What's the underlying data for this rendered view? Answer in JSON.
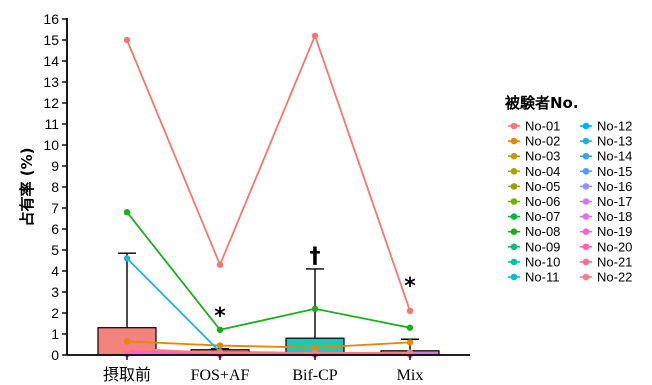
{
  "chart_data": {
    "type": "bar",
    "title": "",
    "xlabel": "",
    "ylabel": "占有率 (%)",
    "ylim": [
      0,
      16
    ],
    "yticks": [
      0,
      1,
      2,
      3,
      4,
      5,
      6,
      7,
      8,
      9,
      10,
      11,
      12,
      13,
      14,
      15,
      16
    ],
    "categories": [
      "摂取前",
      "FOS+AF",
      "Bif-CP",
      "Mix"
    ],
    "bar_series": {
      "values": [
        1.3,
        0.25,
        0.8,
        0.2
      ],
      "error_upper": [
        4.85,
        0.3,
        4.1,
        0.75
      ],
      "colors": [
        "#f4837d",
        "#f08080",
        "#20c8b4",
        "#c77dd8"
      ]
    },
    "annotations": [
      "",
      "*",
      "†",
      "*"
    ],
    "legend": {
      "title": "被験者No.",
      "placement": "right",
      "columns": 2
    },
    "series": [
      {
        "name": "No-01",
        "color": "#f8766d",
        "values": [
          15.0,
          4.3,
          15.2,
          2.1
        ]
      },
      {
        "name": "No-02",
        "color": "#e58700",
        "values": [
          0.65,
          0.45,
          0.35,
          0.6
        ]
      },
      {
        "name": "No-03",
        "color": "#c99800",
        "values": [
          0.1,
          0.05,
          0.05,
          0.05
        ]
      },
      {
        "name": "No-04",
        "color": "#a3a500",
        "values": [
          0.05,
          0.02,
          0.02,
          0.02
        ]
      },
      {
        "name": "No-05",
        "color": "#9ca000",
        "values": [
          0.05,
          0.02,
          0.02,
          0.02
        ]
      },
      {
        "name": "No-06",
        "color": "#6bb100",
        "values": [
          0.05,
          0.02,
          0.02,
          0.02
        ]
      },
      {
        "name": "No-07",
        "color": "#00ba38",
        "values": [
          0.05,
          0.02,
          0.02,
          0.02
        ]
      },
      {
        "name": "No-08",
        "color": "#1aaf1a",
        "values": [
          6.8,
          1.2,
          2.2,
          1.3
        ]
      },
      {
        "name": "No-09",
        "color": "#00bf7d",
        "values": [
          0.05,
          0.02,
          0.02,
          0.02
        ]
      },
      {
        "name": "No-10",
        "color": "#00c0af",
        "values": [
          0.05,
          0.02,
          0.02,
          0.02
        ]
      },
      {
        "name": "No-11",
        "color": "#00bcd8",
        "values": [
          0.05,
          0.02,
          0.02,
          0.02
        ]
      },
      {
        "name": "No-12",
        "color": "#00b0f6",
        "values": [
          0.05,
          0.02,
          0.02,
          0.02
        ]
      },
      {
        "name": "No-13",
        "color": "#1fb0e0",
        "values": [
          4.6,
          0.15,
          0.1,
          0.05
        ]
      },
      {
        "name": "No-14",
        "color": "#35a2ff",
        "values": [
          0.05,
          0.02,
          0.02,
          0.02
        ]
      },
      {
        "name": "No-15",
        "color": "#4e9cff",
        "values": [
          0.05,
          0.02,
          0.02,
          0.02
        ]
      },
      {
        "name": "No-16",
        "color": "#9590ff",
        "values": [
          0.05,
          0.02,
          0.02,
          0.02
        ]
      },
      {
        "name": "No-17",
        "color": "#c77cff",
        "values": [
          0.05,
          0.02,
          0.02,
          0.02
        ]
      },
      {
        "name": "No-18",
        "color": "#e76bf3",
        "values": [
          0.1,
          0.05,
          0.05,
          0.05
        ]
      },
      {
        "name": "No-19",
        "color": "#fa62db",
        "values": [
          0.15,
          0.05,
          0.05,
          0.05
        ]
      },
      {
        "name": "No-20",
        "color": "#ff62bc",
        "values": [
          0.2,
          0.1,
          0.1,
          0.1
        ]
      },
      {
        "name": "No-21",
        "color": "#ff6c91",
        "values": [
          0.25,
          0.1,
          0.1,
          0.1
        ]
      },
      {
        "name": "No-22",
        "color": "#ff7a8a",
        "values": [
          0.3,
          0.1,
          0.1,
          0.1
        ]
      }
    ]
  }
}
